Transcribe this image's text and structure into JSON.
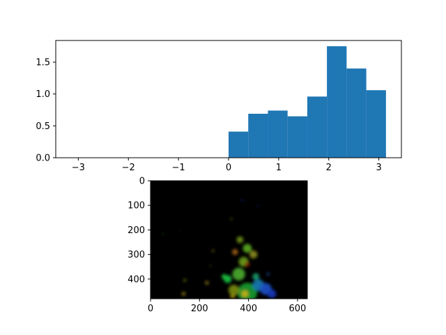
{
  "chart_data": [
    {
      "type": "bar",
      "title": "",
      "xlabel": "",
      "ylabel": "",
      "xlim": [
        -3.45,
        3.45
      ],
      "ylim": [
        0,
        1.84
      ],
      "xticks": [
        -3,
        -2,
        -1,
        0,
        1,
        2,
        3
      ],
      "xtick_labels": [
        "−3",
        "−2",
        "−1",
        "0",
        "1",
        "2",
        "3"
      ],
      "yticks": [
        0,
        0.5,
        1.0,
        1.5
      ],
      "ytick_labels": [
        "0.0",
        "0.5",
        "1.0",
        "1.5"
      ],
      "bar_color": "#1f77b4",
      "bin_edges": [
        0,
        0.393,
        0.785,
        1.178,
        1.571,
        1.963,
        2.356,
        2.749,
        3.142
      ],
      "values": [
        0.41,
        0.69,
        0.74,
        0.65,
        0.96,
        1.75,
        1.4,
        1.06
      ],
      "grid": false
    },
    {
      "type": "image",
      "title": "",
      "xlim": [
        0,
        640
      ],
      "ylim": [
        480,
        0
      ],
      "xticks": [
        0,
        200,
        400,
        600
      ],
      "xtick_labels": [
        "0",
        "200",
        "400",
        "600"
      ],
      "yticks": [
        0,
        100,
        200,
        300,
        400
      ],
      "ytick_labels": [
        "0",
        "100",
        "200",
        "300",
        "400"
      ],
      "background_color": "#000000",
      "blobs": [
        {
          "x": 395,
          "y": 455,
          "r": 40,
          "color": "#1a9a2a"
        },
        {
          "x": 340,
          "y": 445,
          "r": 22,
          "color": "#7a8a10"
        },
        {
          "x": 360,
          "y": 380,
          "r": 26,
          "color": "#4aa82a"
        },
        {
          "x": 380,
          "y": 330,
          "r": 20,
          "color": "#6a9a1a"
        },
        {
          "x": 395,
          "y": 275,
          "r": 18,
          "color": "#5aa820"
        },
        {
          "x": 365,
          "y": 240,
          "r": 14,
          "color": "#6a8a18"
        },
        {
          "x": 420,
          "y": 300,
          "r": 16,
          "color": "#8a8a20"
        },
        {
          "x": 345,
          "y": 290,
          "r": 12,
          "color": "#a0601a"
        },
        {
          "x": 395,
          "y": 340,
          "r": 10,
          "color": "#8a2010"
        },
        {
          "x": 315,
          "y": 400,
          "r": 16,
          "color": "#18c040"
        },
        {
          "x": 300,
          "y": 390,
          "r": 10,
          "color": "#20c840"
        },
        {
          "x": 440,
          "y": 425,
          "r": 24,
          "color": "#1a7ab0"
        },
        {
          "x": 470,
          "y": 440,
          "r": 24,
          "color": "#2050c8"
        },
        {
          "x": 495,
          "y": 460,
          "r": 18,
          "color": "#1438b8"
        },
        {
          "x": 430,
          "y": 390,
          "r": 14,
          "color": "#1a9a6a"
        },
        {
          "x": 385,
          "y": 460,
          "r": 14,
          "color": "#c8b010"
        },
        {
          "x": 335,
          "y": 470,
          "r": 10,
          "color": "#a09010"
        },
        {
          "x": 230,
          "y": 415,
          "r": 8,
          "color": "#7a6a14"
        },
        {
          "x": 140,
          "y": 405,
          "r": 6,
          "color": "#6a6a10"
        },
        {
          "x": 135,
          "y": 460,
          "r": 8,
          "color": "#8a7a10"
        },
        {
          "x": 255,
          "y": 285,
          "r": 6,
          "color": "#5a5010"
        },
        {
          "x": 330,
          "y": 155,
          "r": 6,
          "color": "#2a3a10"
        },
        {
          "x": 375,
          "y": 80,
          "r": 6,
          "color": "#101850"
        },
        {
          "x": 440,
          "y": 100,
          "r": 5,
          "color": "#101a40"
        },
        {
          "x": 50,
          "y": 215,
          "r": 5,
          "color": "#1a2a10"
        },
        {
          "x": 120,
          "y": 205,
          "r": 4,
          "color": "#1a2a10"
        },
        {
          "x": 245,
          "y": 345,
          "r": 5,
          "color": "#2a2a10"
        },
        {
          "x": 480,
          "y": 380,
          "r": 8,
          "color": "#102a60"
        }
      ]
    }
  ]
}
